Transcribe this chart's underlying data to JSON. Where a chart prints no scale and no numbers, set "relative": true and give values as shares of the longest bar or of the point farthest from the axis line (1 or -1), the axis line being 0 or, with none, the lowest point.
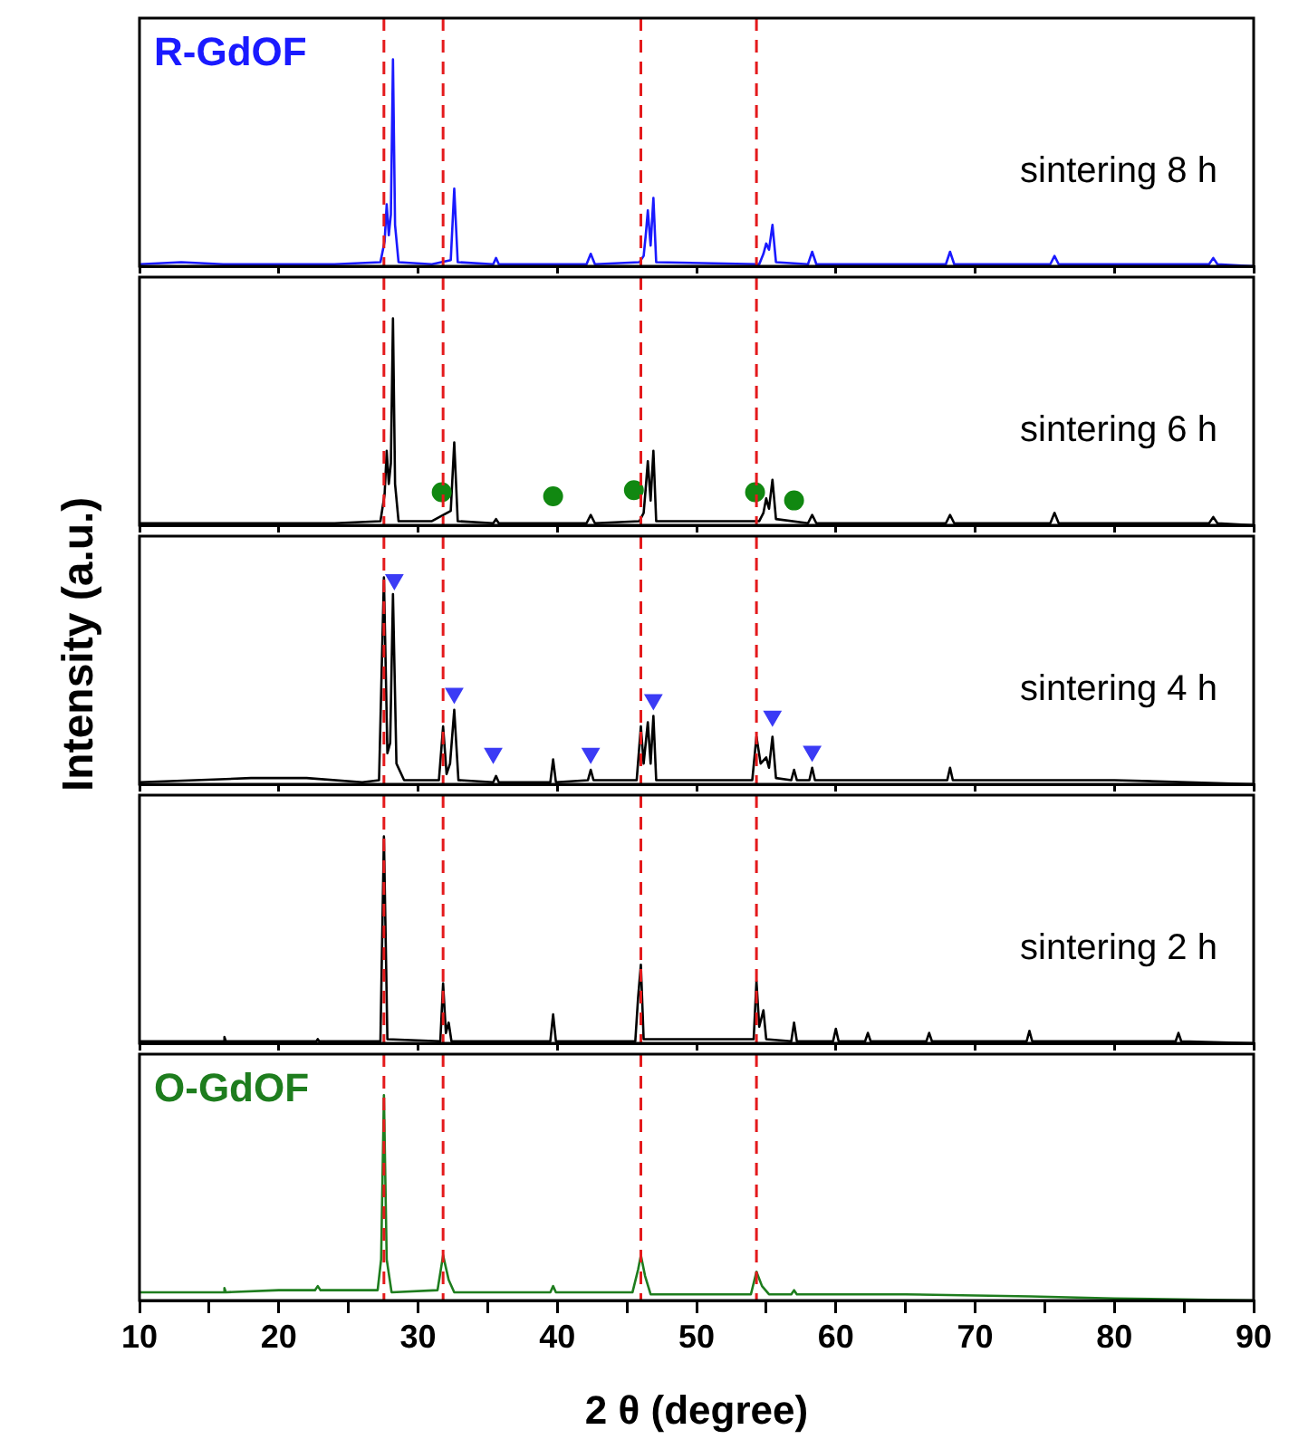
{
  "chart_data": [
    {
      "type": "line",
      "relative": true,
      "xlim": [
        10,
        90
      ],
      "tick_labels": false,
      "x": [
        10,
        13,
        16,
        20,
        24,
        27.3,
        27.6,
        27.75,
        27.9,
        28.05,
        28.2,
        28.35,
        28.6,
        31,
        32.35,
        32.6,
        32.85,
        35.4,
        35.6,
        35.8,
        42.1,
        42.4,
        42.7,
        45.9,
        46.2,
        46.35,
        46.5,
        46.7,
        46.9,
        47.1,
        54.5,
        54.8,
        55.0,
        55.2,
        55.45,
        55.7,
        58.0,
        58.3,
        58.6,
        64,
        67.9,
        68.2,
        68.5,
        75.4,
        75.7,
        76,
        80,
        86.8,
        87.1,
        87.4,
        90
      ],
      "series": [
        {
          "name": "R-GdOF",
          "color": "#1a1aff",
          "values": [
            0.01,
            0.02,
            0.01,
            0.01,
            0.01,
            0.02,
            0.12,
            0.3,
            0.15,
            0.25,
            1,
            0.2,
            0.02,
            0.01,
            0.03,
            0.375,
            0.02,
            0.01,
            0.04,
            0.01,
            0.01,
            0.06,
            0.01,
            0.02,
            0.05,
            0.15,
            0.27,
            0.1,
            0.33,
            0.02,
            0.01,
            0.06,
            0.11,
            0.08,
            0.2,
            0.02,
            0.01,
            0.07,
            0.01,
            0.01,
            0.01,
            0.07,
            0.01,
            0.01,
            0.05,
            0.01,
            0.01,
            0.01,
            0.04,
            0.01,
            0
          ]
        }
      ],
      "ref_lines": [
        {
          "axis": "x",
          "value": 27.55,
          "color": "#e41a1c",
          "line_style": "dashed"
        },
        {
          "axis": "x",
          "value": 31.8,
          "color": "#e41a1c",
          "line_style": "dashed"
        },
        {
          "axis": "x",
          "value": 46.0,
          "color": "#e41a1c",
          "line_style": "dashed"
        },
        {
          "axis": "x",
          "value": 54.3,
          "color": "#e41a1c",
          "line_style": "dashed"
        }
      ],
      "annotations": [
        "sintering 8 h"
      ]
    },
    {
      "type": "line",
      "relative": true,
      "xlim": [
        10,
        90
      ],
      "tick_labels": false,
      "x": [
        10,
        13,
        16,
        20,
        24,
        27.3,
        27.6,
        27.75,
        27.9,
        28.05,
        28.2,
        28.35,
        28.6,
        31,
        32.35,
        32.6,
        32.85,
        35.4,
        35.6,
        35.8,
        42.1,
        42.4,
        42.7,
        45.9,
        46.2,
        46.35,
        46.5,
        46.7,
        46.9,
        47.1,
        54.5,
        54.8,
        55.0,
        55.2,
        55.45,
        55.7,
        58.0,
        58.3,
        58.6,
        64,
        67.9,
        68.2,
        68.5,
        75.4,
        75.7,
        76,
        80,
        86.8,
        87.1,
        87.4,
        90
      ],
      "series": [
        {
          "color": "#000000",
          "values": [
            0.01,
            0.01,
            0.01,
            0.01,
            0.01,
            0.02,
            0.15,
            0.36,
            0.2,
            0.3,
            1,
            0.2,
            0.02,
            0.02,
            0.07,
            0.4,
            0.02,
            0.01,
            0.03,
            0.01,
            0.01,
            0.05,
            0.01,
            0.02,
            0.06,
            0.18,
            0.31,
            0.12,
            0.36,
            0.02,
            0.02,
            0.06,
            0.13,
            0.08,
            0.22,
            0.03,
            0.01,
            0.05,
            0.01,
            0.01,
            0.01,
            0.05,
            0.01,
            0.01,
            0.06,
            0.01,
            0.01,
            0.01,
            0.04,
            0.01,
            0
          ]
        },
        {
          "type": "scatter",
          "marker": "circle",
          "color": "#118811",
          "x": [
            31.7,
            39.7,
            45.5,
            54.2,
            57.0
          ],
          "values": [
            0.16,
            0.14,
            0.17,
            0.16,
            0.12
          ]
        }
      ],
      "ref_lines": [
        {
          "axis": "x",
          "value": 27.55,
          "color": "#e41a1c",
          "line_style": "dashed"
        },
        {
          "axis": "x",
          "value": 31.8,
          "color": "#e41a1c",
          "line_style": "dashed"
        },
        {
          "axis": "x",
          "value": 46.0,
          "color": "#e41a1c",
          "line_style": "dashed"
        },
        {
          "axis": "x",
          "value": 54.3,
          "color": "#e41a1c",
          "line_style": "dashed"
        }
      ],
      "annotations": [
        "sintering 6 h"
      ]
    },
    {
      "type": "line",
      "relative": true,
      "xlim": [
        10,
        90
      ],
      "tick_labels": false,
      "ylabel": "Intensity (a.u.)",
      "x": [
        10,
        14,
        18,
        20,
        22,
        26,
        27.2,
        27.55,
        27.8,
        28.0,
        28.2,
        28.45,
        29,
        31.5,
        31.8,
        32.05,
        32.3,
        32.6,
        32.9,
        35.4,
        35.6,
        35.8,
        39.5,
        39.7,
        39.9,
        42.2,
        42.4,
        42.6,
        45.7,
        46.0,
        46.2,
        46.5,
        46.7,
        46.9,
        47.1,
        54.0,
        54.3,
        54.6,
        55.0,
        55.2,
        55.45,
        55.7,
        56.8,
        57.0,
        57.2,
        58.1,
        58.3,
        58.5,
        68.0,
        68.2,
        68.4,
        80,
        90
      ],
      "series": [
        {
          "color": "#000000",
          "values": [
            0.01,
            0.02,
            0.03,
            0.03,
            0.03,
            0.01,
            0.02,
            1,
            0.15,
            0.2,
            0.92,
            0.1,
            0.02,
            0.02,
            0.28,
            0.05,
            0.1,
            0.36,
            0.02,
            0.01,
            0.04,
            0.01,
            0.01,
            0.12,
            0.01,
            0.02,
            0.07,
            0.02,
            0.02,
            0.28,
            0.1,
            0.3,
            0.1,
            0.33,
            0.02,
            0.02,
            0.23,
            0.1,
            0.13,
            0.08,
            0.23,
            0.03,
            0.02,
            0.07,
            0.02,
            0.02,
            0.08,
            0.02,
            0.02,
            0.08,
            0.02,
            0.02,
            0
          ]
        },
        {
          "type": "scatter",
          "marker": "triangle",
          "color": "#3b3bf5",
          "x": [
            28.3,
            32.6,
            35.4,
            42.4,
            46.9,
            55.45,
            58.3
          ],
          "values": [
            0.99,
            0.44,
            0.15,
            0.15,
            0.41,
            0.33,
            0.16
          ]
        }
      ],
      "ref_lines": [
        {
          "axis": "x",
          "value": 27.55,
          "color": "#e41a1c",
          "line_style": "dashed"
        },
        {
          "axis": "x",
          "value": 31.8,
          "color": "#e41a1c",
          "line_style": "dashed"
        },
        {
          "axis": "x",
          "value": 46.0,
          "color": "#e41a1c",
          "line_style": "dashed"
        },
        {
          "axis": "x",
          "value": 54.3,
          "color": "#e41a1c",
          "line_style": "dashed"
        }
      ],
      "annotations": [
        "sintering 4 h"
      ]
    },
    {
      "type": "line",
      "relative": true,
      "xlim": [
        10,
        90
      ],
      "tick_labels": false,
      "x": [
        10,
        16.0,
        16.1,
        16.2,
        20,
        22.7,
        22.8,
        22.9,
        27.3,
        27.55,
        27.8,
        31.6,
        31.8,
        32.0,
        32.2,
        32.4,
        39.5,
        39.7,
        39.9,
        45.6,
        45.8,
        46.0,
        46.2,
        54.1,
        54.3,
        54.5,
        54.8,
        55.0,
        56.8,
        57.0,
        57.2,
        59.8,
        60,
        60.2,
        62.1,
        62.3,
        62.5,
        66.5,
        66.7,
        66.9,
        73.7,
        73.9,
        74.1,
        84.4,
        84.6,
        84.8,
        90
      ],
      "series": [
        {
          "color": "#000000",
          "values": [
            0.01,
            0.01,
            0.03,
            0.01,
            0.01,
            0.01,
            0.02,
            0.01,
            0.01,
            1,
            0.02,
            0.01,
            0.29,
            0.05,
            0.1,
            0.01,
            0.01,
            0.14,
            0.01,
            0.01,
            0.22,
            0.38,
            0.02,
            0.02,
            0.3,
            0.08,
            0.16,
            0.02,
            0.01,
            0.1,
            0.01,
            0.01,
            0.07,
            0.01,
            0.01,
            0.05,
            0.01,
            0.01,
            0.05,
            0.01,
            0.01,
            0.06,
            0.01,
            0.01,
            0.05,
            0.01,
            0
          ]
        }
      ],
      "ref_lines": [
        {
          "axis": "x",
          "value": 27.55,
          "color": "#e41a1c",
          "line_style": "dashed"
        },
        {
          "axis": "x",
          "value": 31.8,
          "color": "#e41a1c",
          "line_style": "dashed"
        },
        {
          "axis": "x",
          "value": 46.0,
          "color": "#e41a1c",
          "line_style": "dashed"
        },
        {
          "axis": "x",
          "value": 54.3,
          "color": "#e41a1c",
          "line_style": "dashed"
        }
      ],
      "annotations": [
        "sintering 2 h"
      ]
    },
    {
      "type": "line",
      "relative": true,
      "xlim": [
        10,
        90
      ],
      "tick_labels": "x",
      "xlabel": "2 θ (degree)",
      "xticks": [
        10,
        {
          "value": 15,
          "label": null
        },
        20,
        {
          "value": 25,
          "label": null
        },
        30,
        {
          "value": 35,
          "label": null
        },
        40,
        {
          "value": 45,
          "label": null
        },
        50,
        {
          "value": 55,
          "label": null
        },
        60,
        {
          "value": 65,
          "label": null
        },
        70,
        {
          "value": 75,
          "label": null
        },
        80,
        {
          "value": 85,
          "label": null
        },
        90
      ],
      "x": [
        10,
        16.0,
        16.1,
        16.2,
        20,
        22.6,
        22.8,
        23.0,
        27.1,
        27.35,
        27.55,
        27.75,
        28.1,
        31.4,
        31.8,
        32.2,
        32.6,
        39.5,
        39.7,
        39.9,
        45.4,
        45.8,
        46.0,
        46.3,
        46.7,
        53.9,
        54.3,
        54.7,
        55.2,
        56.8,
        57.0,
        57.2,
        65,
        74,
        80,
        90
      ],
      "series": [
        {
          "name": "O-GdOF",
          "color": "#1e7d1e",
          "values": [
            0.04,
            0.04,
            0.06,
            0.04,
            0.05,
            0.05,
            0.07,
            0.05,
            0.05,
            0.2,
            1,
            0.2,
            0.04,
            0.05,
            0.22,
            0.1,
            0.04,
            0.04,
            0.07,
            0.04,
            0.04,
            0.15,
            0.22,
            0.12,
            0.03,
            0.03,
            0.14,
            0.07,
            0.03,
            0.03,
            0.05,
            0.03,
            0.03,
            0.02,
            0.01,
            0
          ]
        }
      ],
      "ref_lines": [
        {
          "axis": "x",
          "value": 27.55,
          "color": "#e41a1c",
          "line_style": "dashed"
        },
        {
          "axis": "x",
          "value": 31.8,
          "color": "#e41a1c",
          "line_style": "dashed"
        },
        {
          "axis": "x",
          "value": 46.0,
          "color": "#e41a1c",
          "line_style": "dashed"
        },
        {
          "axis": "x",
          "value": 54.3,
          "color": "#e41a1c",
          "line_style": "dashed"
        }
      ]
    }
  ]
}
